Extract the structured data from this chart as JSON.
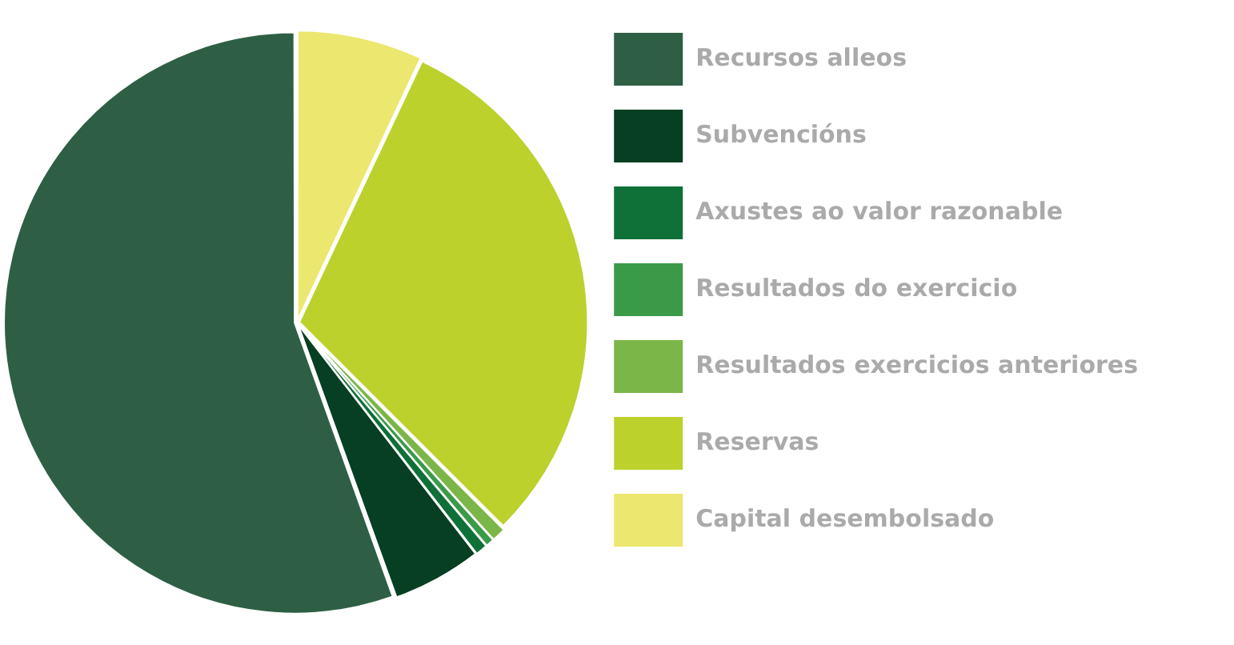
{
  "chart_data": {
    "type": "pie",
    "categories": [
      "Recursos alleos",
      "Subvencións",
      "Axustes ao valor razonable",
      "Resultados do exercicio",
      "Resultados exercicios anteriores",
      "Reservas",
      "Capital desembolsado"
    ],
    "values": [
      55.5,
      5,
      0.7,
      0.5,
      0.8,
      30.5,
      7
    ],
    "colors": [
      "#2e5f45",
      "#063f22",
      "#0f7038",
      "#3a9a48",
      "#7ab648",
      "#bcd12c",
      "#ece76e"
    ],
    "legend": "right"
  }
}
